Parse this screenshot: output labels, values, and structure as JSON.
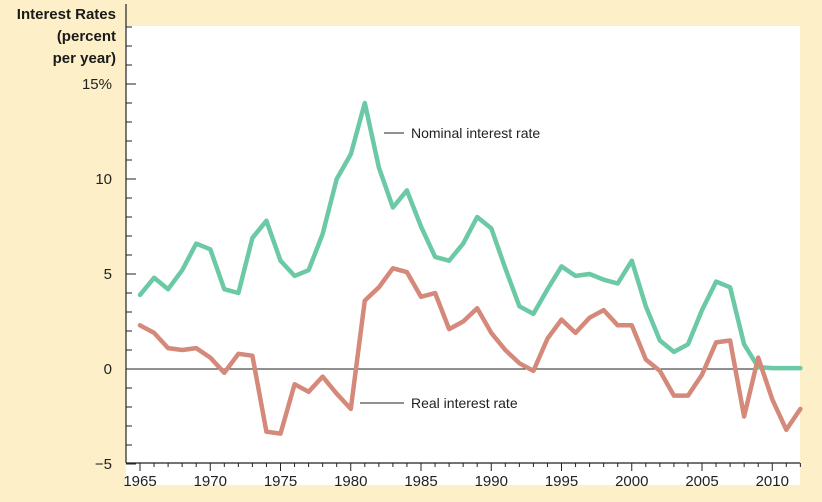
{
  "chart_data": {
    "type": "line",
    "ylabel": "Interest Rates\n(percent\nper year)",
    "ylim": [
      -5,
      15
    ],
    "xlim": [
      1964,
      2012
    ],
    "y_ticks": [
      {
        "value": 15,
        "label": "15%"
      },
      {
        "value": 10,
        "label": "10"
      },
      {
        "value": 5,
        "label": "5"
      },
      {
        "value": 0,
        "label": "0"
      },
      {
        "value": -5,
        "label": "−5"
      }
    ],
    "x_ticks": [
      1965,
      1970,
      1975,
      1980,
      1985,
      1990,
      1995,
      2000,
      2005,
      2010
    ],
    "x": [
      1965,
      1966,
      1967,
      1968,
      1969,
      1970,
      1971,
      1972,
      1973,
      1974,
      1975,
      1976,
      1977,
      1978,
      1979,
      1980,
      1981,
      1982,
      1983,
      1984,
      1985,
      1986,
      1987,
      1988,
      1989,
      1990,
      1991,
      1992,
      1993,
      1994,
      1995,
      1996,
      1997,
      1998,
      1999,
      2000,
      2001,
      2002,
      2003,
      2004,
      2005,
      2006,
      2007,
      2008,
      2009,
      2010,
      2011,
      2012
    ],
    "series": [
      {
        "name": "Nominal interest rate",
        "color": "#6cc9a5",
        "values": [
          3.9,
          4.8,
          4.2,
          5.2,
          6.6,
          6.3,
          4.2,
          4.0,
          6.9,
          7.8,
          5.7,
          4.9,
          5.2,
          7.1,
          10.0,
          11.3,
          14.0,
          10.6,
          8.5,
          9.4,
          7.5,
          5.9,
          5.7,
          6.6,
          8.0,
          7.4,
          5.3,
          3.3,
          2.9,
          4.2,
          5.4,
          4.9,
          5.0,
          4.7,
          4.5,
          5.7,
          3.3,
          1.5,
          0.9,
          1.3,
          3.1,
          4.6,
          4.3,
          1.3,
          0.1,
          0.05,
          0.05,
          0.05
        ]
      },
      {
        "name": "Real interest rate",
        "color": "#d4897a",
        "values": [
          2.3,
          1.9,
          1.1,
          1.0,
          1.1,
          0.6,
          -0.2,
          0.8,
          0.7,
          -3.3,
          -3.4,
          -0.8,
          -1.2,
          -0.4,
          -1.3,
          -2.1,
          3.6,
          4.3,
          5.3,
          5.1,
          3.8,
          4.0,
          2.1,
          2.5,
          3.2,
          1.9,
          1.0,
          0.3,
          -0.1,
          1.6,
          2.6,
          1.9,
          2.7,
          3.1,
          2.3,
          2.3,
          0.5,
          -0.1,
          -1.4,
          -1.4,
          -0.3,
          1.4,
          1.5,
          -2.5,
          0.6,
          -1.6,
          -3.2,
          -2.1
        ]
      }
    ],
    "annotations": {
      "nominal": "Nominal interest rate",
      "real": "Real interest rate"
    },
    "colors": {
      "background": "#fdf0c9",
      "plot_background": "#ffffff",
      "axis": "#222222"
    }
  }
}
